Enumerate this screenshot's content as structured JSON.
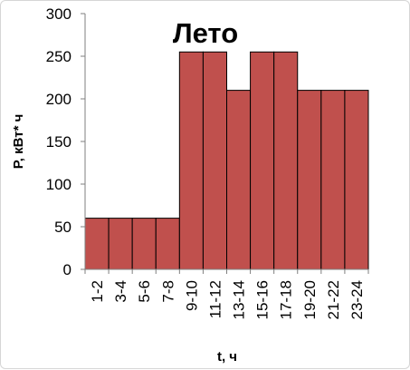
{
  "chart_data": {
    "type": "bar",
    "title": "Лето",
    "xlabel": "t, ч",
    "ylabel": "P, кВт* ч",
    "categories": [
      "1-2",
      "3-4",
      "5-6",
      "7-8",
      "9-10",
      "11-12",
      "13-14",
      "15-16",
      "17-18",
      "19-20",
      "21-22",
      "23-24"
    ],
    "values": [
      60,
      60,
      60,
      60,
      255,
      255,
      210,
      255,
      255,
      210,
      210,
      210
    ],
    "ylim": [
      0,
      300
    ],
    "yticks": [
      0,
      50,
      100,
      150,
      200,
      250,
      300
    ],
    "grid": false,
    "legend": "none",
    "bar_color": "#c0504d",
    "bar_edge_color": "#000000"
  }
}
